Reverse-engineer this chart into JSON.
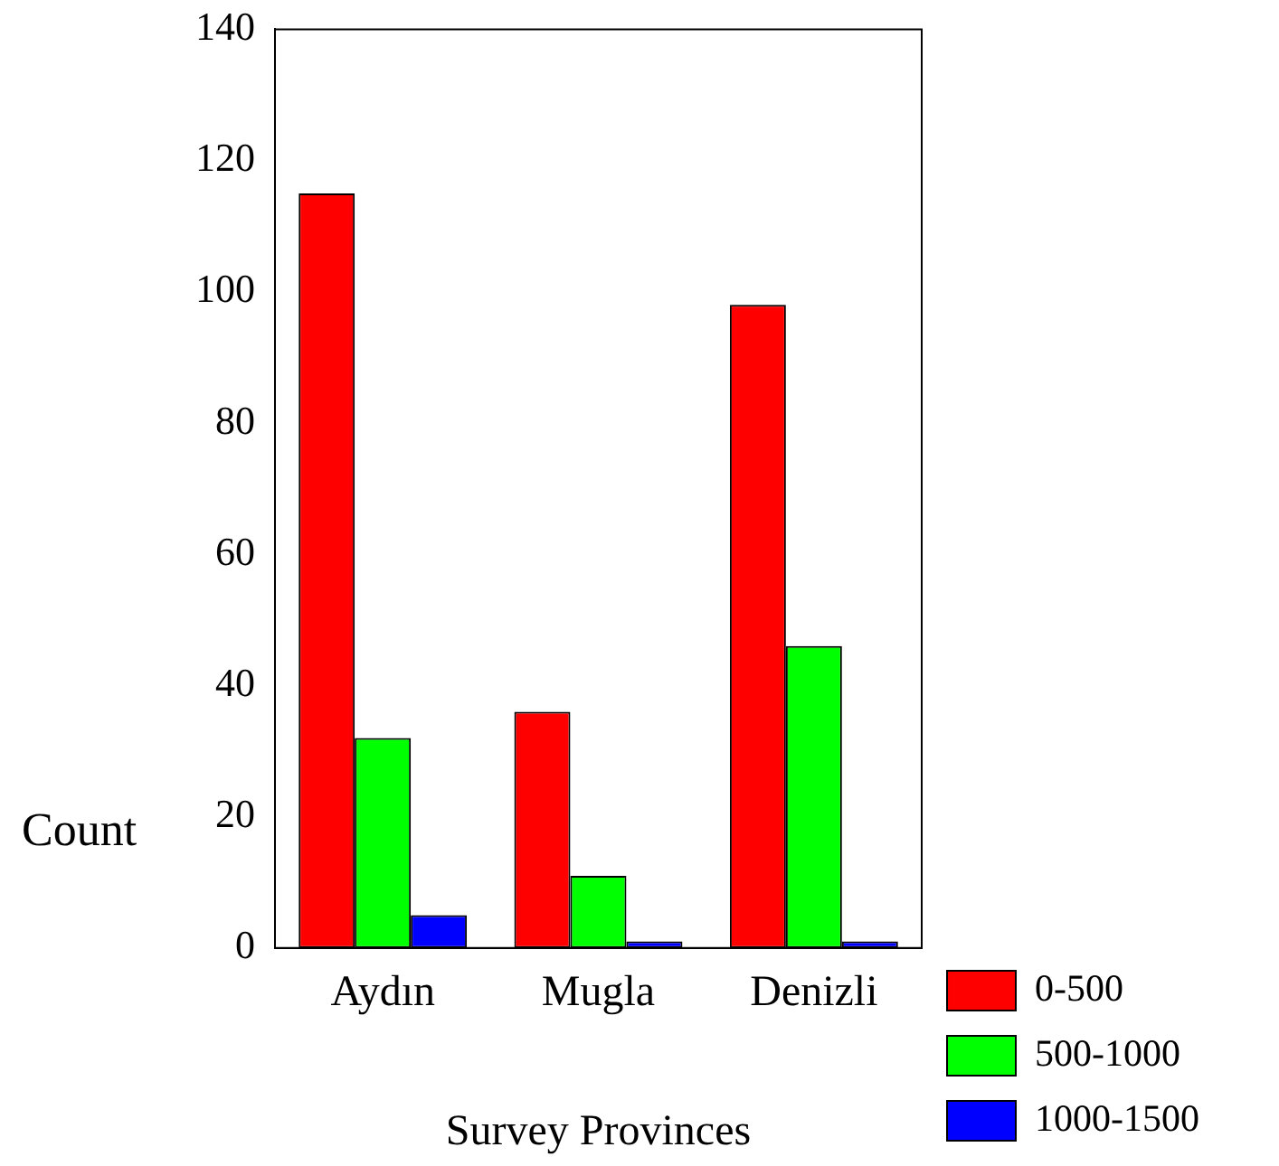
{
  "chart_data": {
    "type": "bar",
    "xlabel": "Survey Provinces",
    "ylabel": "Count",
    "categories": [
      "Aydın",
      "Mugla",
      "Denizli"
    ],
    "series": [
      {
        "name": "0-500",
        "color": "#ff0000",
        "values": [
          115,
          36,
          98
        ]
      },
      {
        "name": "500-1000",
        "color": "#00ff00",
        "values": [
          32,
          11,
          46
        ]
      },
      {
        "name": "1000-1500",
        "color": "#0000ff",
        "values": [
          5,
          1,
          1
        ]
      }
    ],
    "ylim": [
      0,
      140
    ],
    "yticks": [
      0,
      20,
      40,
      60,
      80,
      100,
      120,
      140
    ],
    "legend": "bottom right"
  }
}
